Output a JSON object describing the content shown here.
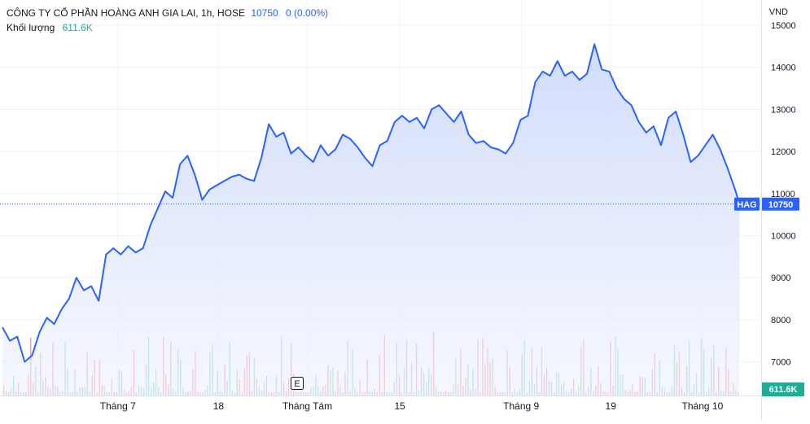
{
  "header": {
    "title": "CÔNG TY CỔ PHẦN HOÀNG ANH GIA LAI, 1h, HOSE",
    "last_price": "10750",
    "change": "0 (0.00%)",
    "volume_label": "Khối lượng",
    "volume_value": "611.6K",
    "currency": "VND"
  },
  "price_tag": {
    "symbol": "HAG",
    "value": "10750"
  },
  "volume_tag": "611.6K",
  "event_marker": "E",
  "colors": {
    "line": "#2962ff",
    "area_top": "#c9d6fb",
    "area_bottom": "#eef2fd",
    "vol_up": "#22ab94",
    "vol_down": "#f23645",
    "tag_bg": "#2962ff",
    "vol_tag_bg": "#22ab94"
  },
  "chart_data": {
    "type": "area",
    "title": "CÔNG TY CỔ PHẦN HOÀNG ANH GIA LAI, 1h, HOSE",
    "ylabel": "VND",
    "ylim": [
      6200,
      15600
    ],
    "yticks": [
      7000,
      8000,
      9000,
      10000,
      11000,
      12000,
      13000,
      14000,
      15000
    ],
    "xlim": [
      0,
      100
    ],
    "xticks": [
      {
        "x": 15.6,
        "label": "Tháng 7"
      },
      {
        "x": 29.2,
        "label": "18"
      },
      {
        "x": 41.2,
        "label": "Tháng Tám"
      },
      {
        "x": 53.7,
        "label": "15"
      },
      {
        "x": 70.1,
        "label": "Tháng 9"
      },
      {
        "x": 82.2,
        "label": "19"
      },
      {
        "x": 94.6,
        "label": "Tháng 10"
      }
    ],
    "series": [
      {
        "name": "HAG",
        "x": [
          0,
          1,
          2,
          3,
          4,
          5,
          6,
          7,
          8,
          9,
          10,
          11,
          12,
          13,
          14,
          15,
          16,
          17,
          18,
          19,
          20,
          21,
          22,
          23,
          24,
          25,
          26,
          27,
          28,
          29,
          30,
          31,
          32,
          33,
          34,
          35,
          36,
          37,
          38,
          39,
          40,
          41,
          42,
          43,
          44,
          45,
          46,
          47,
          48,
          49,
          50,
          51,
          52,
          53,
          54,
          55,
          56,
          57,
          58,
          59,
          60,
          61,
          62,
          63,
          64,
          65,
          66,
          67,
          68,
          69,
          70,
          71,
          72,
          73,
          74,
          75,
          76,
          77,
          78,
          79,
          80,
          81,
          82,
          83,
          84,
          85,
          86,
          87,
          88,
          89,
          90,
          91,
          92,
          93,
          94,
          95,
          96,
          97,
          98,
          99,
          99.6
        ],
        "values": [
          7820,
          7500,
          7600,
          7000,
          7150,
          7700,
          8050,
          7900,
          8250,
          8500,
          9000,
          8700,
          8800,
          8450,
          9550,
          9700,
          9550,
          9750,
          9600,
          9700,
          10250,
          10650,
          11050,
          10900,
          11700,
          11900,
          11450,
          10850,
          11100,
          11200,
          11300,
          11400,
          11450,
          11350,
          11300,
          11850,
          12650,
          12350,
          12450,
          11950,
          12100,
          11900,
          11750,
          12150,
          11900,
          12050,
          12400,
          12300,
          12100,
          11850,
          11650,
          12150,
          12250,
          12700,
          12850,
          12700,
          12800,
          12550,
          13000,
          13100,
          12900,
          12700,
          12950,
          12400,
          12200,
          12250,
          12100,
          12050,
          11950,
          12200,
          12750,
          12850,
          13650,
          13900,
          13800,
          14150,
          13800,
          13900,
          13700,
          13850,
          14550,
          13950,
          13900,
          13500,
          13250,
          13100,
          12700,
          12450,
          12600,
          12150,
          12800,
          12950,
          12400,
          11750,
          11900,
          12150,
          12400,
          12050,
          11600,
          11100,
          10750
        ]
      }
    ],
    "volume": {
      "name": "Khối lượng",
      "last": "611.6K"
    },
    "last_value": 10750,
    "grid": true,
    "legend": "top-left"
  }
}
